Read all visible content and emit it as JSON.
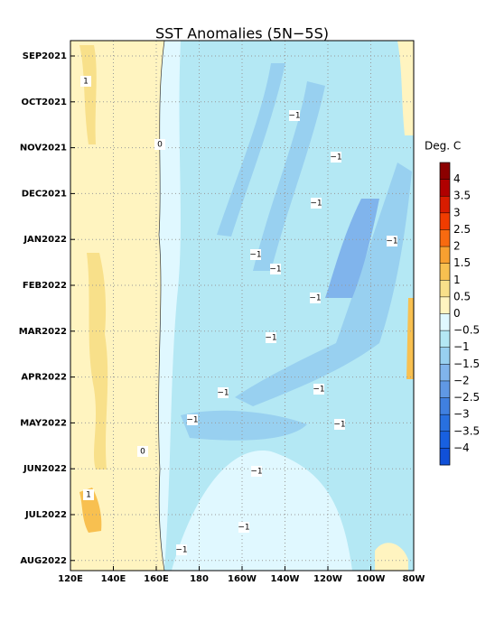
{
  "chart_data": {
    "type": "hovmoller",
    "title": "SST Anomalies (5N−5S)",
    "xlim": [
      120,
      280
    ],
    "xticks": [
      {
        "value": 120,
        "label": "120E"
      },
      {
        "value": 140,
        "label": "140E"
      },
      {
        "value": 160,
        "label": "160E"
      },
      {
        "value": 180,
        "label": "180"
      },
      {
        "value": 200,
        "label": "160W"
      },
      {
        "value": 220,
        "label": "140W"
      },
      {
        "value": 240,
        "label": "120W"
      },
      {
        "value": 260,
        "label": "100W"
      },
      {
        "value": 280,
        "label": "80W"
      }
    ],
    "y_labels": [
      "SEP2021",
      "OCT2021",
      "NOV2021",
      "DEC2021",
      "JAN2022",
      "FEB2022",
      "MAR2022",
      "APR2022",
      "MAY2022",
      "JUN2022",
      "JUL2022",
      "AUG2022"
    ],
    "grid": true,
    "contour_labels": [
      "1",
      "0",
      "−1",
      "−1",
      "−1",
      "−1",
      "−1",
      "−1",
      "−1",
      "−1",
      "−1",
      "−1",
      "−1",
      "−1",
      "0",
      "1",
      "−1",
      "−1",
      "−1"
    ],
    "colorbar": {
      "title": "Deg. C",
      "levels": [
        4,
        3.5,
        3,
        2.5,
        2,
        1.5,
        1,
        0.5,
        0,
        {
          "value": -0.5,
          "label": "−0.5"
        },
        {
          "value": -1,
          "label": "−1"
        },
        {
          "value": -1.5,
          "label": "−1.5"
        },
        {
          "value": -2,
          "label": "−2"
        },
        {
          "value": -2.5,
          "label": "−2.5"
        },
        {
          "value": -3,
          "label": "−3"
        },
        {
          "value": -3.5,
          "label": "−3.5"
        },
        {
          "value": -4,
          "label": "−4"
        }
      ],
      "colors": [
        "#8b0000",
        "#b00000",
        "#d81c00",
        "#f03c00",
        "#f86a10",
        "#f8a030",
        "#f8c050",
        "#f8e08a",
        "#fff4c0",
        "#e0f8ff",
        "#b4e8f4",
        "#98d0f0",
        "#80b4ec",
        "#6098e4",
        "#4080e0",
        "#2870e0",
        "#1860e0",
        "#1050d8"
      ]
    }
  }
}
